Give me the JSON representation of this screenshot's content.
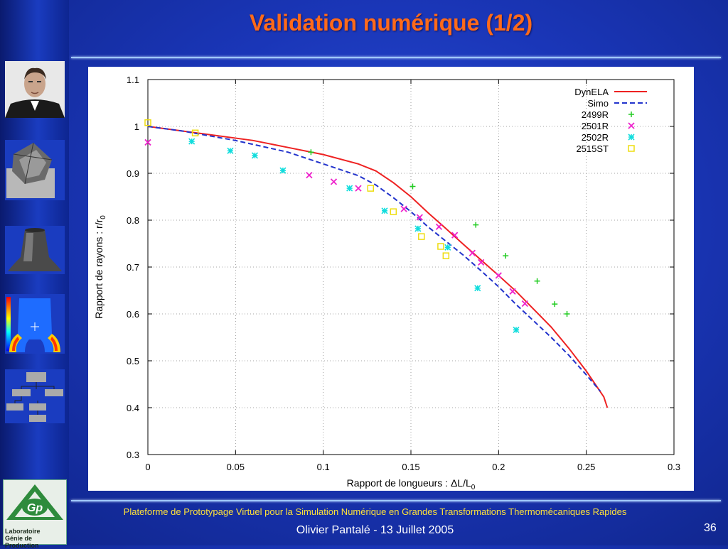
{
  "slide": {
    "title": "Validation numérique (1/2)",
    "footer_line1": "Plateforme de Prototypage Virtuel pour la Simulation Numérique en Grandes Transformations Thermomécaniques Rapides",
    "footer_line2": "Olivier Pantalé - 13 Juillet 2005",
    "page_number": "36"
  },
  "logo": {
    "text": "Gp",
    "caption1": "Laboratoire",
    "caption2": "Génie de Production"
  },
  "colors": {
    "title": "#ff6a1a",
    "footer": "#ffe23a",
    "accent_rule": "#9fc8ff"
  },
  "chart_data": {
    "type": "line",
    "xlabel": "Rapport de longueurs : ΔL/L",
    "xlabel_sub": "0",
    "ylabel": "Rapport de rayons : r/r",
    "ylabel_sub": "0",
    "xlim": [
      0,
      0.3
    ],
    "ylim": [
      0.3,
      1.1
    ],
    "xticks": [
      0,
      0.05,
      0.1,
      0.15,
      0.2,
      0.25,
      0.3
    ],
    "xtick_labels": [
      "0",
      "0.05",
      "0.1",
      "0.15",
      "0.2",
      "0.25",
      "0.3"
    ],
    "yticks": [
      0.3,
      0.4,
      0.5,
      0.6,
      0.7,
      0.8,
      0.9,
      1.0,
      1.1
    ],
    "ytick_labels": [
      "0.3",
      "0.4",
      "0.5",
      "0.6",
      "0.7",
      "0.8",
      "0.9",
      "1",
      "1.1"
    ],
    "grid": true,
    "legend_position": "top-right",
    "series": [
      {
        "name": "DynELA",
        "style": "line",
        "color": "#ee2222",
        "x": [
          0,
          0.03,
          0.06,
          0.08,
          0.1,
          0.12,
          0.13,
          0.14,
          0.15,
          0.16,
          0.17,
          0.18,
          0.19,
          0.2,
          0.21,
          0.22,
          0.23,
          0.24,
          0.25,
          0.26,
          0.262
        ],
        "y": [
          1.0,
          0.985,
          0.97,
          0.955,
          0.94,
          0.92,
          0.905,
          0.88,
          0.85,
          0.815,
          0.782,
          0.748,
          0.715,
          0.682,
          0.648,
          0.61,
          0.572,
          0.527,
          0.478,
          0.423,
          0.4
        ]
      },
      {
        "name": "Simo",
        "style": "dashed",
        "color": "#2233cc",
        "x": [
          0,
          0.02,
          0.05,
          0.08,
          0.1,
          0.12,
          0.13,
          0.14,
          0.15,
          0.16,
          0.17,
          0.18,
          0.19,
          0.2,
          0.21,
          0.22,
          0.23,
          0.24,
          0.25,
          0.258
        ],
        "y": [
          1.0,
          0.99,
          0.97,
          0.945,
          0.92,
          0.895,
          0.875,
          0.848,
          0.818,
          0.785,
          0.755,
          0.725,
          0.692,
          0.658,
          0.62,
          0.585,
          0.55,
          0.512,
          0.47,
          0.435
        ]
      },
      {
        "name": "2499R",
        "style": "plus",
        "color": "#22cc22",
        "x": [
          0.093,
          0.151,
          0.187,
          0.204,
          0.222,
          0.232,
          0.239
        ],
        "y": [
          0.945,
          0.872,
          0.79,
          0.724,
          0.67,
          0.621,
          0.6
        ]
      },
      {
        "name": "2501R",
        "style": "cross",
        "color": "#ee22cc",
        "x": [
          0,
          0.092,
          0.106,
          0.12,
          0.146,
          0.155,
          0.166,
          0.175,
          0.185,
          0.19,
          0.2,
          0.208,
          0.215
        ],
        "y": [
          0.966,
          0.896,
          0.882,
          0.868,
          0.824,
          0.806,
          0.786,
          0.768,
          0.73,
          0.71,
          0.682,
          0.648,
          0.622
        ]
      },
      {
        "name": "2502R",
        "style": "star",
        "color": "#11dddd",
        "x": [
          0.025,
          0.047,
          0.061,
          0.077,
          0.115,
          0.135,
          0.154,
          0.171,
          0.188,
          0.21
        ],
        "y": [
          0.968,
          0.948,
          0.938,
          0.906,
          0.868,
          0.82,
          0.782,
          0.742,
          0.655,
          0.566
        ]
      },
      {
        "name": "2515ST",
        "style": "square",
        "color": "#eedd11",
        "x": [
          0,
          0.027,
          0.127,
          0.14,
          0.156,
          0.167,
          0.17
        ],
        "y": [
          1.008,
          0.986,
          0.868,
          0.818,
          0.765,
          0.744,
          0.724
        ]
      }
    ]
  }
}
